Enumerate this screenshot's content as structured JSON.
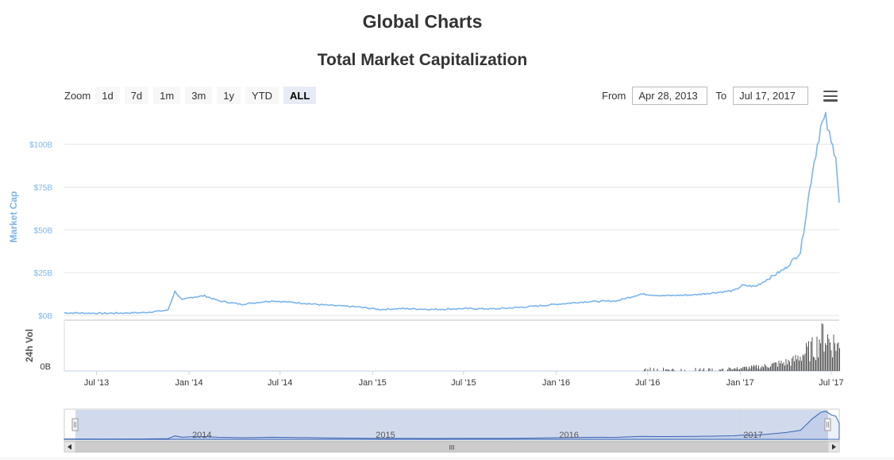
{
  "header": {
    "page_title": "Global Charts",
    "chart_title": "Total Market Capitalization"
  },
  "zoom": {
    "label": "Zoom",
    "buttons": [
      "1d",
      "7d",
      "1m",
      "3m",
      "1y",
      "YTD",
      "ALL"
    ],
    "active": "ALL"
  },
  "range": {
    "from_label": "From",
    "from_value": "Apr 28, 2013",
    "to_label": "To",
    "to_value": "Jul 17, 2017"
  },
  "menu": {
    "icon": "hamburger-menu-icon"
  },
  "chart_data": [
    {
      "type": "line",
      "title": "Total Market Capitalization",
      "ylabel": "Market Cap",
      "y_unit": "USD billions",
      "ylim": [
        0,
        117
      ],
      "y_ticks": [
        "$0B",
        "$25B",
        "$50B",
        "$75B",
        "$100B"
      ],
      "y_tick_values": [
        0,
        25,
        50,
        75,
        100
      ],
      "color": "#7cb5ec",
      "grid": true,
      "x": [
        "2013-04-28",
        "2013-07-15",
        "2013-10-01",
        "2013-11-20",
        "2013-12-04",
        "2013-12-18",
        "2014-01-05",
        "2014-02-01",
        "2014-03-01",
        "2014-04-15",
        "2014-05-15",
        "2014-06-15",
        "2014-08-01",
        "2014-10-01",
        "2014-12-01",
        "2015-01-15",
        "2015-03-01",
        "2015-05-01",
        "2015-07-01",
        "2015-09-01",
        "2015-11-05",
        "2016-01-01",
        "2016-03-01",
        "2016-05-01",
        "2016-06-18",
        "2016-08-01",
        "2016-10-01",
        "2016-12-20",
        "2017-01-05",
        "2017-02-01",
        "2017-03-01",
        "2017-04-01",
        "2017-05-01",
        "2017-05-25",
        "2017-06-10",
        "2017-06-20",
        "2017-07-01",
        "2017-07-10",
        "2017-07-17"
      ],
      "y": [
        1.5,
        1.2,
        1.6,
        3.0,
        14.0,
        9.0,
        10.5,
        11.5,
        8.5,
        6.5,
        7.5,
        8.5,
        7.5,
        6.0,
        5.0,
        3.5,
        4.0,
        3.5,
        4.0,
        3.8,
        5.0,
        6.5,
        8.0,
        8.5,
        12.5,
        11.5,
        12.0,
        14.5,
        17.5,
        17.0,
        22.0,
        27.5,
        37.0,
        85.0,
        110.0,
        115.0,
        100.0,
        95.0,
        66.0
      ]
    },
    {
      "type": "bar",
      "title": "",
      "ylabel": "24h Vol",
      "y_ticks": [
        "0B"
      ],
      "color": "#555555",
      "x": [
        "2016-06-15",
        "2016-09-01",
        "2016-12-20",
        "2017-02-15",
        "2017-03-15",
        "2017-04-15",
        "2017-05-01",
        "2017-05-15",
        "2017-06-01",
        "2017-06-10",
        "2017-06-20",
        "2017-06-30",
        "2017-07-10",
        "2017-07-17"
      ],
      "values": [
        0.06,
        0.05,
        0.06,
        0.12,
        0.18,
        0.25,
        0.4,
        0.5,
        0.62,
        0.95,
        0.88,
        0.7,
        0.72,
        0.55
      ]
    }
  ],
  "x_axis": {
    "tick_labels": [
      "Jul '13",
      "Jan '14",
      "Jul '14",
      "Jan '15",
      "Jul '15",
      "Jan '16",
      "Jul '16",
      "Jan '17",
      "Jul '17"
    ],
    "tick_dates": [
      "2013-07-01",
      "2014-01-01",
      "2014-07-01",
      "2015-01-01",
      "2015-07-01",
      "2016-01-01",
      "2016-07-01",
      "2017-01-01",
      "2017-07-01"
    ]
  },
  "navigator": {
    "year_labels": [
      "2014",
      "2015",
      "2016",
      "2017"
    ],
    "year_dates": [
      "2014-01-01",
      "2015-01-01",
      "2016-01-01",
      "2017-01-01"
    ],
    "scrollbar_grip": "III"
  }
}
